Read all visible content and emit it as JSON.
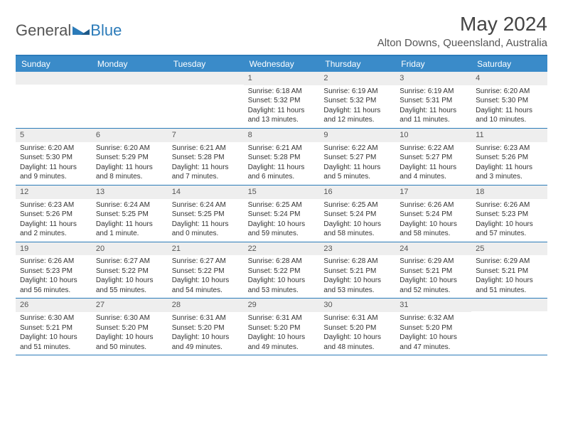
{
  "logo": {
    "text1": "General",
    "text2": "Blue"
  },
  "title": "May 2024",
  "location": "Alton Downs, Queensland, Australia",
  "dayNames": [
    "Sunday",
    "Monday",
    "Tuesday",
    "Wednesday",
    "Thursday",
    "Friday",
    "Saturday"
  ],
  "colors": {
    "header_bg": "#3a8bc9",
    "accent": "#2b7bb9",
    "daynum_bg": "#eeeeee",
    "text": "#333333"
  },
  "weeks": [
    [
      {
        "n": "",
        "sunrise": "",
        "sunset": "",
        "daylight": ""
      },
      {
        "n": "",
        "sunrise": "",
        "sunset": "",
        "daylight": ""
      },
      {
        "n": "",
        "sunrise": "",
        "sunset": "",
        "daylight": ""
      },
      {
        "n": "1",
        "sunrise": "Sunrise: 6:18 AM",
        "sunset": "Sunset: 5:32 PM",
        "daylight": "Daylight: 11 hours and 13 minutes."
      },
      {
        "n": "2",
        "sunrise": "Sunrise: 6:19 AM",
        "sunset": "Sunset: 5:32 PM",
        "daylight": "Daylight: 11 hours and 12 minutes."
      },
      {
        "n": "3",
        "sunrise": "Sunrise: 6:19 AM",
        "sunset": "Sunset: 5:31 PM",
        "daylight": "Daylight: 11 hours and 11 minutes."
      },
      {
        "n": "4",
        "sunrise": "Sunrise: 6:20 AM",
        "sunset": "Sunset: 5:30 PM",
        "daylight": "Daylight: 11 hours and 10 minutes."
      }
    ],
    [
      {
        "n": "5",
        "sunrise": "Sunrise: 6:20 AM",
        "sunset": "Sunset: 5:30 PM",
        "daylight": "Daylight: 11 hours and 9 minutes."
      },
      {
        "n": "6",
        "sunrise": "Sunrise: 6:20 AM",
        "sunset": "Sunset: 5:29 PM",
        "daylight": "Daylight: 11 hours and 8 minutes."
      },
      {
        "n": "7",
        "sunrise": "Sunrise: 6:21 AM",
        "sunset": "Sunset: 5:28 PM",
        "daylight": "Daylight: 11 hours and 7 minutes."
      },
      {
        "n": "8",
        "sunrise": "Sunrise: 6:21 AM",
        "sunset": "Sunset: 5:28 PM",
        "daylight": "Daylight: 11 hours and 6 minutes."
      },
      {
        "n": "9",
        "sunrise": "Sunrise: 6:22 AM",
        "sunset": "Sunset: 5:27 PM",
        "daylight": "Daylight: 11 hours and 5 minutes."
      },
      {
        "n": "10",
        "sunrise": "Sunrise: 6:22 AM",
        "sunset": "Sunset: 5:27 PM",
        "daylight": "Daylight: 11 hours and 4 minutes."
      },
      {
        "n": "11",
        "sunrise": "Sunrise: 6:23 AM",
        "sunset": "Sunset: 5:26 PM",
        "daylight": "Daylight: 11 hours and 3 minutes."
      }
    ],
    [
      {
        "n": "12",
        "sunrise": "Sunrise: 6:23 AM",
        "sunset": "Sunset: 5:26 PM",
        "daylight": "Daylight: 11 hours and 2 minutes."
      },
      {
        "n": "13",
        "sunrise": "Sunrise: 6:24 AM",
        "sunset": "Sunset: 5:25 PM",
        "daylight": "Daylight: 11 hours and 1 minute."
      },
      {
        "n": "14",
        "sunrise": "Sunrise: 6:24 AM",
        "sunset": "Sunset: 5:25 PM",
        "daylight": "Daylight: 11 hours and 0 minutes."
      },
      {
        "n": "15",
        "sunrise": "Sunrise: 6:25 AM",
        "sunset": "Sunset: 5:24 PM",
        "daylight": "Daylight: 10 hours and 59 minutes."
      },
      {
        "n": "16",
        "sunrise": "Sunrise: 6:25 AM",
        "sunset": "Sunset: 5:24 PM",
        "daylight": "Daylight: 10 hours and 58 minutes."
      },
      {
        "n": "17",
        "sunrise": "Sunrise: 6:26 AM",
        "sunset": "Sunset: 5:24 PM",
        "daylight": "Daylight: 10 hours and 58 minutes."
      },
      {
        "n": "18",
        "sunrise": "Sunrise: 6:26 AM",
        "sunset": "Sunset: 5:23 PM",
        "daylight": "Daylight: 10 hours and 57 minutes."
      }
    ],
    [
      {
        "n": "19",
        "sunrise": "Sunrise: 6:26 AM",
        "sunset": "Sunset: 5:23 PM",
        "daylight": "Daylight: 10 hours and 56 minutes."
      },
      {
        "n": "20",
        "sunrise": "Sunrise: 6:27 AM",
        "sunset": "Sunset: 5:22 PM",
        "daylight": "Daylight: 10 hours and 55 minutes."
      },
      {
        "n": "21",
        "sunrise": "Sunrise: 6:27 AM",
        "sunset": "Sunset: 5:22 PM",
        "daylight": "Daylight: 10 hours and 54 minutes."
      },
      {
        "n": "22",
        "sunrise": "Sunrise: 6:28 AM",
        "sunset": "Sunset: 5:22 PM",
        "daylight": "Daylight: 10 hours and 53 minutes."
      },
      {
        "n": "23",
        "sunrise": "Sunrise: 6:28 AM",
        "sunset": "Sunset: 5:21 PM",
        "daylight": "Daylight: 10 hours and 53 minutes."
      },
      {
        "n": "24",
        "sunrise": "Sunrise: 6:29 AM",
        "sunset": "Sunset: 5:21 PM",
        "daylight": "Daylight: 10 hours and 52 minutes."
      },
      {
        "n": "25",
        "sunrise": "Sunrise: 6:29 AM",
        "sunset": "Sunset: 5:21 PM",
        "daylight": "Daylight: 10 hours and 51 minutes."
      }
    ],
    [
      {
        "n": "26",
        "sunrise": "Sunrise: 6:30 AM",
        "sunset": "Sunset: 5:21 PM",
        "daylight": "Daylight: 10 hours and 51 minutes."
      },
      {
        "n": "27",
        "sunrise": "Sunrise: 6:30 AM",
        "sunset": "Sunset: 5:20 PM",
        "daylight": "Daylight: 10 hours and 50 minutes."
      },
      {
        "n": "28",
        "sunrise": "Sunrise: 6:31 AM",
        "sunset": "Sunset: 5:20 PM",
        "daylight": "Daylight: 10 hours and 49 minutes."
      },
      {
        "n": "29",
        "sunrise": "Sunrise: 6:31 AM",
        "sunset": "Sunset: 5:20 PM",
        "daylight": "Daylight: 10 hours and 49 minutes."
      },
      {
        "n": "30",
        "sunrise": "Sunrise: 6:31 AM",
        "sunset": "Sunset: 5:20 PM",
        "daylight": "Daylight: 10 hours and 48 minutes."
      },
      {
        "n": "31",
        "sunrise": "Sunrise: 6:32 AM",
        "sunset": "Sunset: 5:20 PM",
        "daylight": "Daylight: 10 hours and 47 minutes."
      },
      {
        "n": "",
        "sunrise": "",
        "sunset": "",
        "daylight": ""
      }
    ]
  ]
}
